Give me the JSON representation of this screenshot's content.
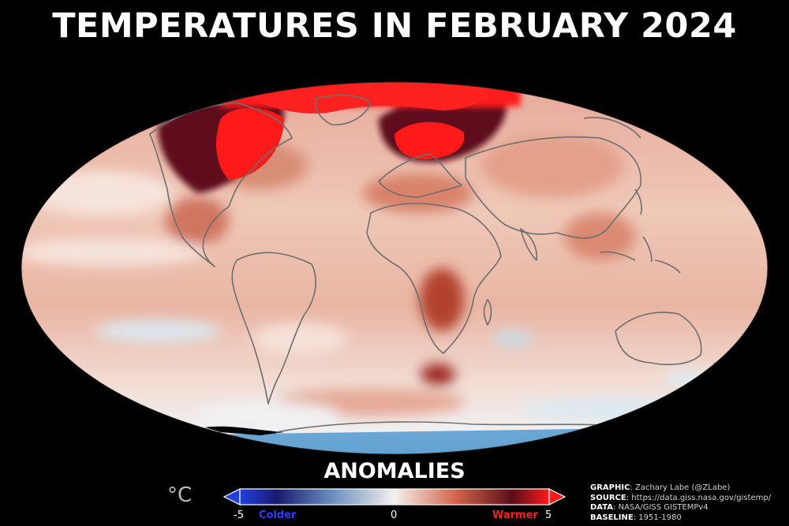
{
  "title": "TEMPERATURES IN FEBRUARY 2024",
  "legend": {
    "heading": "ANOMALIES",
    "unit": "°C",
    "min_label": "-5",
    "mid_label": "0",
    "max_label": "5",
    "colder_label": "Colder",
    "warmer_label": "Warmer",
    "range": [
      -5,
      5
    ],
    "colors": {
      "cold_end": "#1f3fe0",
      "cold_dark": "#1a1a6e",
      "neutral": "#f4f1ee",
      "warm": "#d2644a",
      "warm_dark": "#5a0e18",
      "warm_end": "#ff1a1a"
    }
  },
  "credits": [
    {
      "key": "GRAPHIC",
      "value": "Zachary Labe (@ZLabe)"
    },
    {
      "key": "SOURCE",
      "value": "https://data.giss.nasa.gov/gistemp/"
    },
    {
      "key": "DATA",
      "value": "NASA/GISS GISTEMPv4"
    },
    {
      "key": "BASELINE",
      "value": "1951-1980"
    }
  ],
  "map": {
    "projection": "Mollweide",
    "background": "#000000",
    "coastline_color": "#6e6e6e",
    "base_anomaly_color": "#e9b3a0"
  }
}
